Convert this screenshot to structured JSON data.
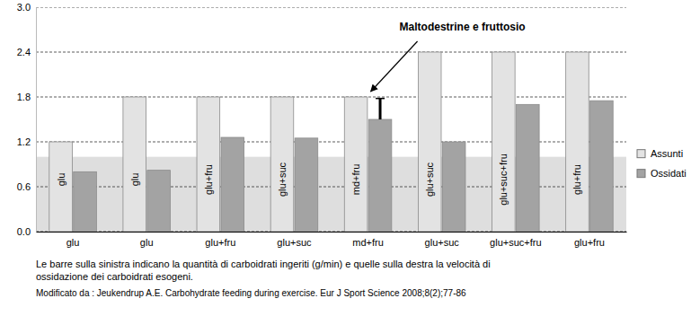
{
  "chart_data": {
    "type": "bar",
    "categories": [
      "glu",
      "glu",
      "glu+fru",
      "glu+suc",
      "md+fru",
      "glu+suc",
      "glu+suc+fru",
      "glu+fru"
    ],
    "series": [
      {
        "name": "Assunti",
        "color": "#e3e3e3",
        "values": [
          1.2,
          1.8,
          1.8,
          1.8,
          1.8,
          2.4,
          2.4,
          2.4
        ]
      },
      {
        "name": "Ossidati",
        "color": "#a3a3a3",
        "values": [
          0.8,
          0.82,
          1.26,
          1.25,
          1.5,
          1.2,
          1.7,
          1.75
        ],
        "errors": [
          null,
          null,
          null,
          null,
          0.28,
          null,
          null,
          null
        ]
      }
    ],
    "ylim": [
      0,
      3.0
    ],
    "yticks": [
      {
        "value": 0,
        "label": "0.0"
      },
      0.6,
      1.2,
      1.8,
      2.4,
      {
        "value": 3,
        "label": "3.0"
      }
    ],
    "grid": true,
    "legend": "right",
    "shaded_band": [
      0,
      1.0
    ],
    "annotation": "Maltodestrine e fruttosio",
    "caption": [
      "Le barre sulla sinistra indicano la quantità di carboidrati ingeriti (g/min) e quelle sulla destra la velocità di",
      "ossidazione dei carboidrati esogeni."
    ],
    "source": "Modificato da : Jeukendrup A.E. Carbohydrate feeding during exercise. Eur J Sport Science 2008;8(2);77-86"
  }
}
